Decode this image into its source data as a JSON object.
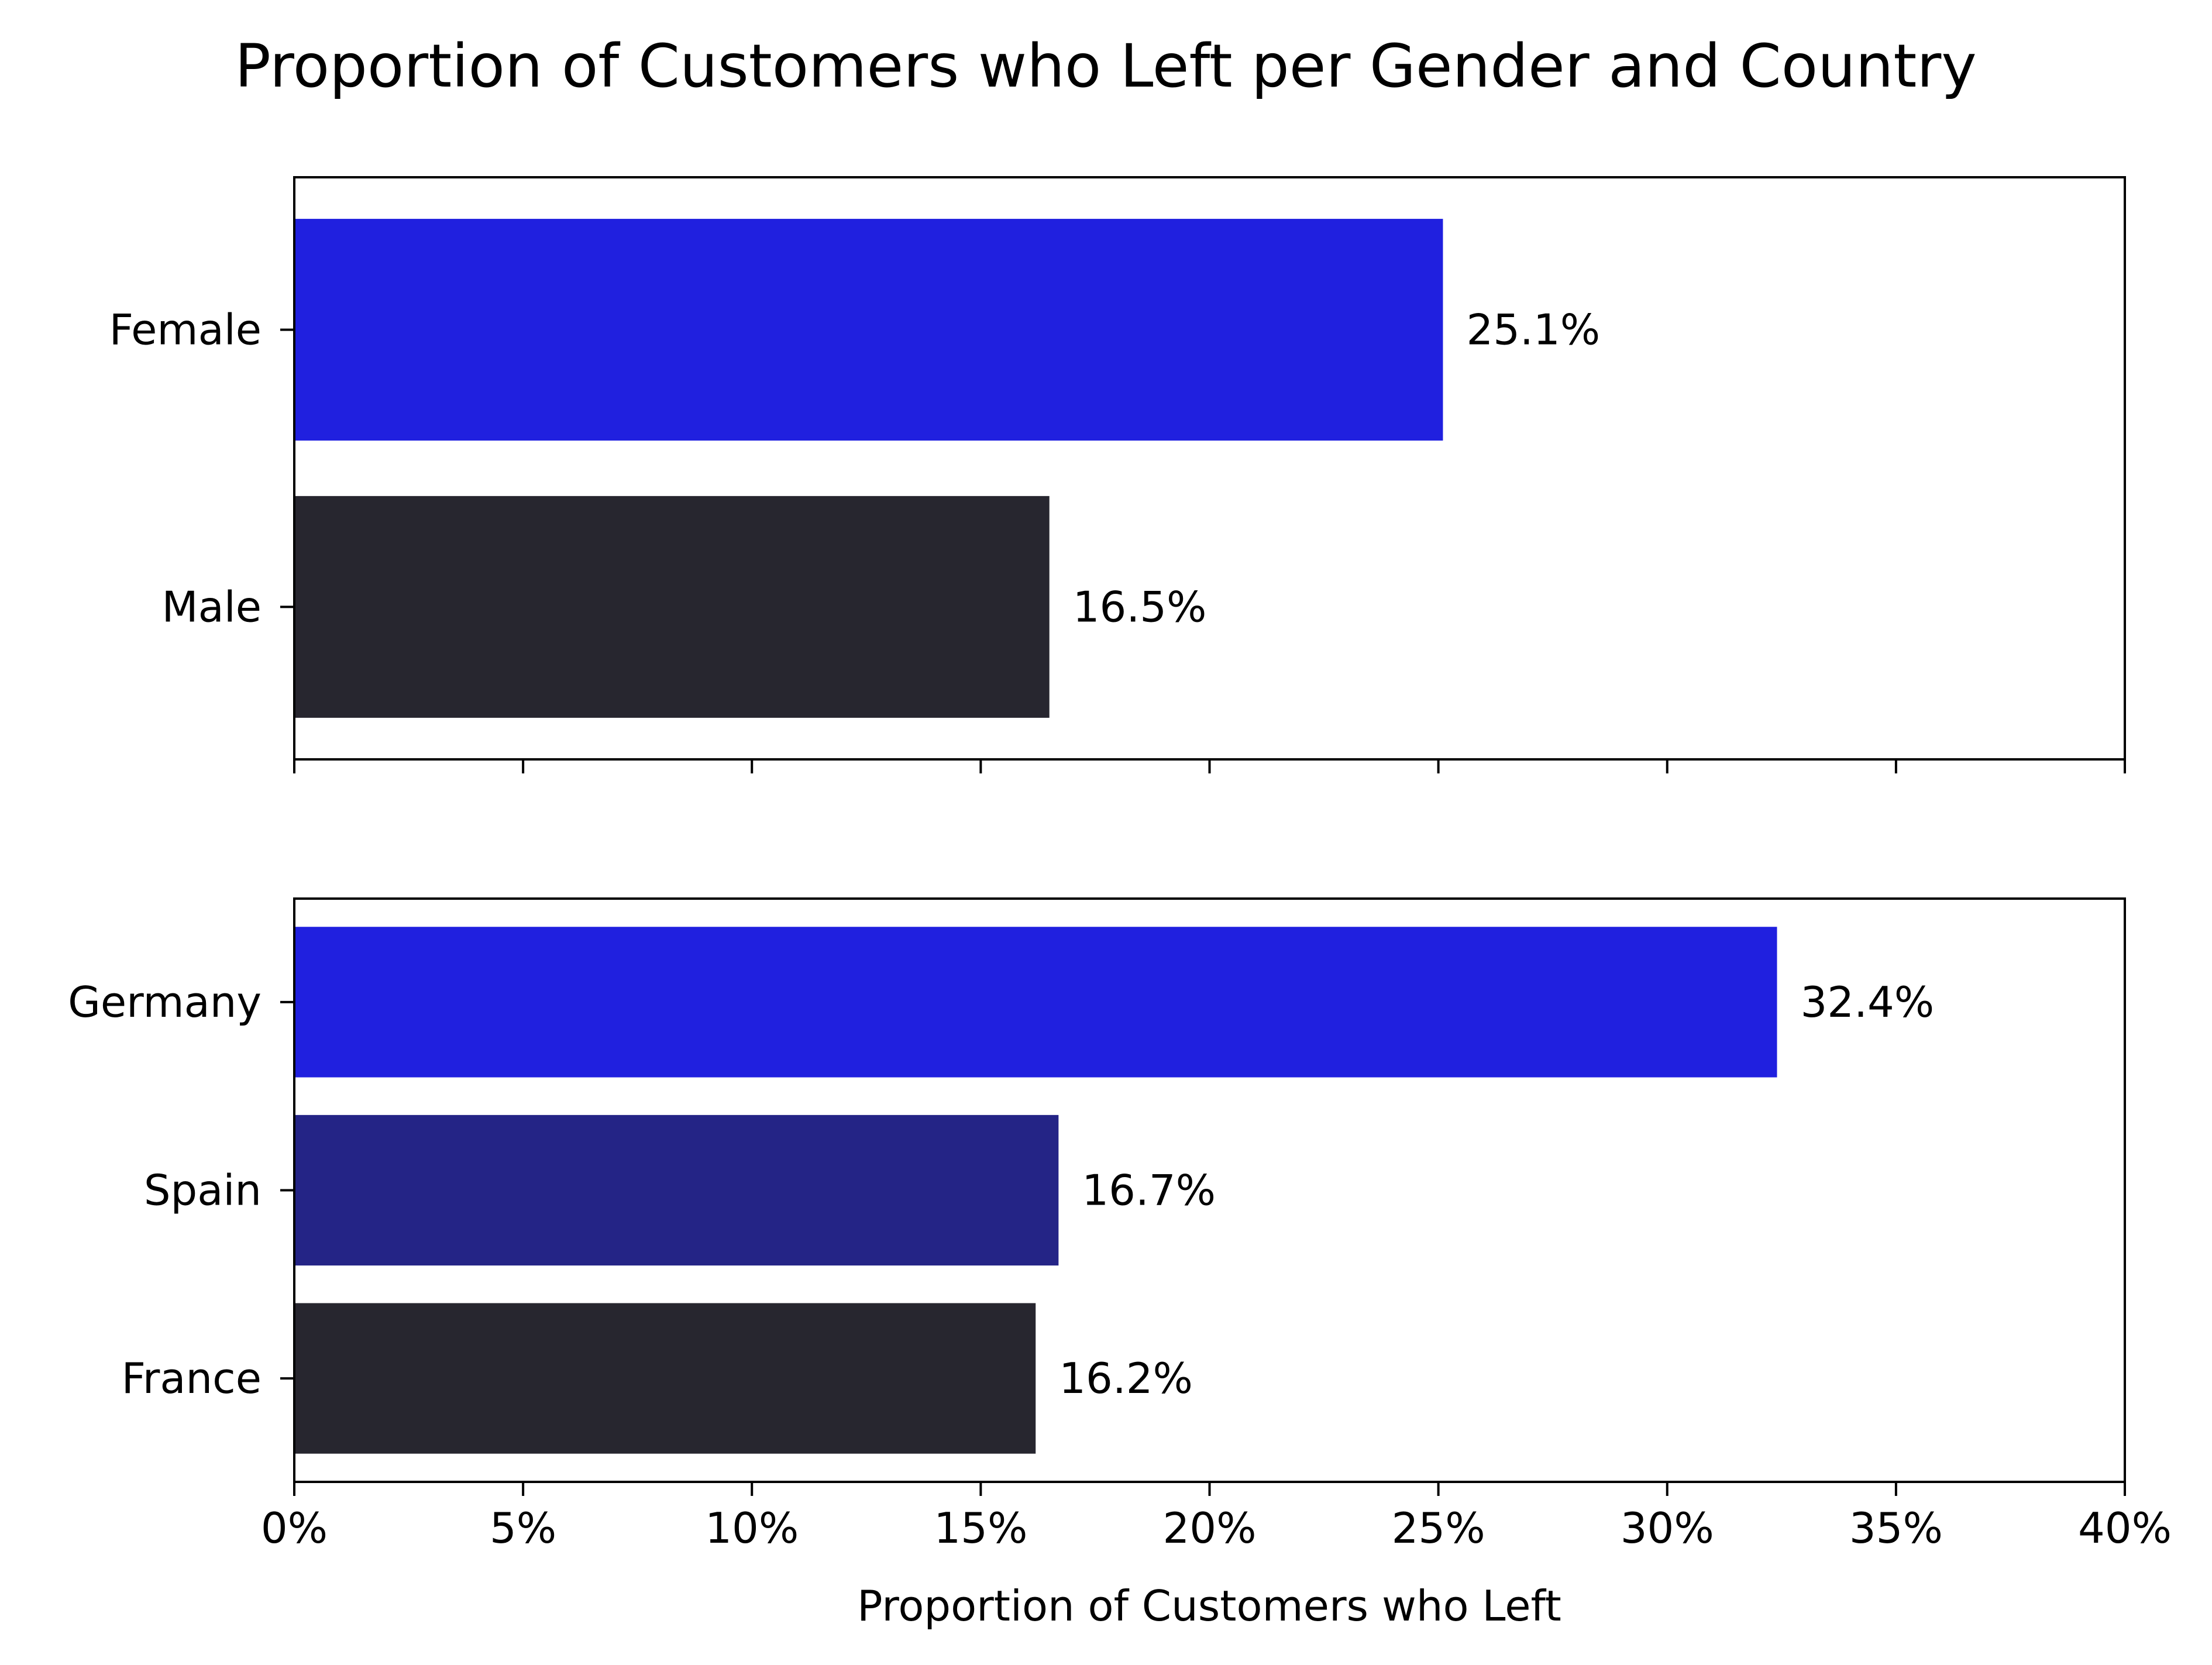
{
  "chart_data": {
    "type": "bar",
    "orientation": "horizontal",
    "title": "Proportion of Customers who Left per Gender and Country",
    "xlabel": "Proportion of Customers who Left",
    "xlim": [
      0,
      40
    ],
    "x_ticks": [
      "0%",
      "5%",
      "10%",
      "15%",
      "20%",
      "25%",
      "30%",
      "35%",
      "40%"
    ],
    "shared_x": true,
    "grid": false,
    "panels": [
      {
        "name": "gender",
        "categories": [
          "Female",
          "Male"
        ],
        "values": [
          25.1,
          16.5
        ],
        "value_labels": [
          "25.1%",
          "16.5%"
        ],
        "colors": [
          "#2020df",
          "#27262f"
        ]
      },
      {
        "name": "country",
        "categories": [
          "Germany",
          "Spain",
          "France"
        ],
        "values": [
          32.4,
          16.7,
          16.2
        ],
        "value_labels": [
          "32.4%",
          "16.7%",
          "16.2%"
        ],
        "colors": [
          "#2020df",
          "#242486",
          "#27262f"
        ]
      }
    ]
  }
}
